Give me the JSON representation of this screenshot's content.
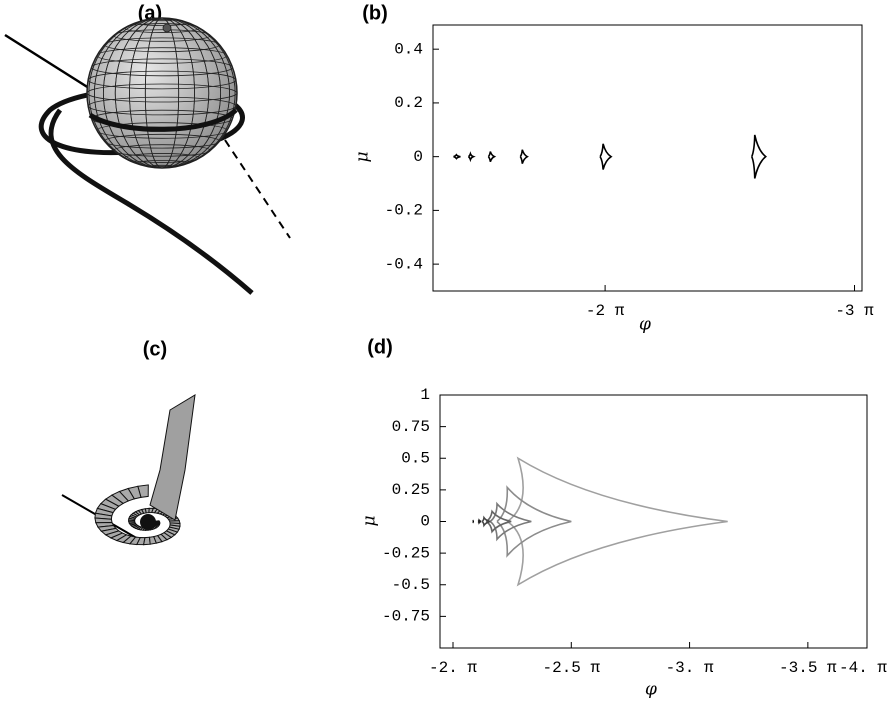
{
  "figure": {
    "panel_labels": [
      "(a)",
      "(c)"
    ]
  },
  "chart_data": [
    {
      "type": "line",
      "title": "(b)",
      "x_label": "φ",
      "y_label": "μ",
      "xlim": [
        -1.31,
        -3.03
      ],
      "ylim": [
        -0.5,
        0.49
      ],
      "xticks": [
        {
          "value": -2,
          "label": "-2 π"
        },
        {
          "value": -3,
          "label": "-3 π"
        }
      ],
      "yticks": [
        0.4,
        0.2,
        0,
        -0.2,
        -0.4
      ],
      "series": [
        {
          "color": "#000000",
          "x": [
            -1.392,
            -1.404,
            -1.42,
            -1.404,
            -1.392
          ],
          "values": [
            0,
            0.007,
            0,
            -0.007,
            0
          ]
        },
        {
          "color": "#000000",
          "x": [
            -1.452,
            -1.46,
            -1.472,
            -1.46,
            -1.452
          ],
          "values": [
            0,
            0.011,
            0,
            -0.011,
            0
          ]
        },
        {
          "color": "#000000",
          "x": [
            -1.532,
            -1.54,
            -1.556,
            -1.54,
            -1.532
          ],
          "values": [
            0,
            0.019,
            0,
            -0.019,
            0
          ]
        },
        {
          "color": "#000000",
          "x": [
            -1.66,
            -1.668,
            -1.688,
            -1.668,
            -1.66
          ],
          "values": [
            0,
            0.026,
            0,
            -0.026,
            0
          ]
        },
        {
          "color": "#000000",
          "x": [
            -1.98,
            -1.992,
            -2.024,
            -1.992,
            -1.98
          ],
          "values": [
            0,
            0.048,
            0,
            -0.048,
            0
          ]
        },
        {
          "color": "#000000",
          "x": [
            -2.588,
            -2.6,
            -2.644,
            -2.6,
            -2.588
          ],
          "values": [
            0,
            0.081,
            0,
            -0.081,
            0
          ]
        }
      ]
    },
    {
      "type": "line",
      "title": "(d)",
      "x_label": "φ",
      "y_label": "μ",
      "xlim": [
        -1.945,
        -3.75
      ],
      "ylim": [
        -1,
        1
      ],
      "xticks": [
        {
          "value": -2,
          "label": "-2. π"
        },
        {
          "value": -2.5,
          "label": "-2.5 π"
        },
        {
          "value": -3,
          "label": "-3. π"
        },
        {
          "value": -3.5,
          "label": "-3.5 π"
        },
        {
          "value": -4,
          "label": "-4. π"
        }
      ],
      "yticks": [
        1,
        0.75,
        0.5,
        0.25,
        0,
        -0.25,
        -0.5,
        -0.75
      ],
      "series": [
        {
          "color": "#a0a0a0",
          "x": [
            -2.23,
            -2.275,
            -3.161,
            -2.275,
            -2.23
          ],
          "values": [
            0,
            0.5,
            0,
            -0.5,
            0
          ]
        },
        {
          "color": "#8c8c8c",
          "x": [
            -2.186,
            -2.229,
            -2.5,
            -2.229,
            -2.186
          ],
          "values": [
            0,
            0.27,
            0,
            -0.27,
            0
          ]
        },
        {
          "color": "#7a7a7a",
          "x": [
            -2.157,
            -2.186,
            -2.331,
            -2.186,
            -2.157
          ],
          "values": [
            0,
            0.14,
            0,
            -0.14,
            0
          ]
        },
        {
          "color": "#666666",
          "x": [
            -2.14,
            -2.165,
            -2.246,
            -2.165,
            -2.14
          ],
          "values": [
            0,
            0.08,
            0,
            -0.08,
            0
          ]
        },
        {
          "color": "#444444",
          "x": [
            -2.123,
            -2.131,
            -2.157,
            -2.131,
            -2.123
          ],
          "values": [
            0,
            0.03,
            0,
            -0.03,
            0
          ]
        },
        {
          "color": "#222222",
          "x": [
            -2.106,
            -2.11,
            -2.119,
            -2.11,
            -2.106
          ],
          "values": [
            0,
            0.01,
            0,
            -0.01,
            0
          ]
        },
        {
          "color": "#000000",
          "x": [
            -2.083,
            -2.085,
            -2.088,
            -2.085,
            -2.083
          ],
          "values": [
            0,
            0.003,
            0,
            -0.003,
            0
          ]
        }
      ]
    }
  ]
}
